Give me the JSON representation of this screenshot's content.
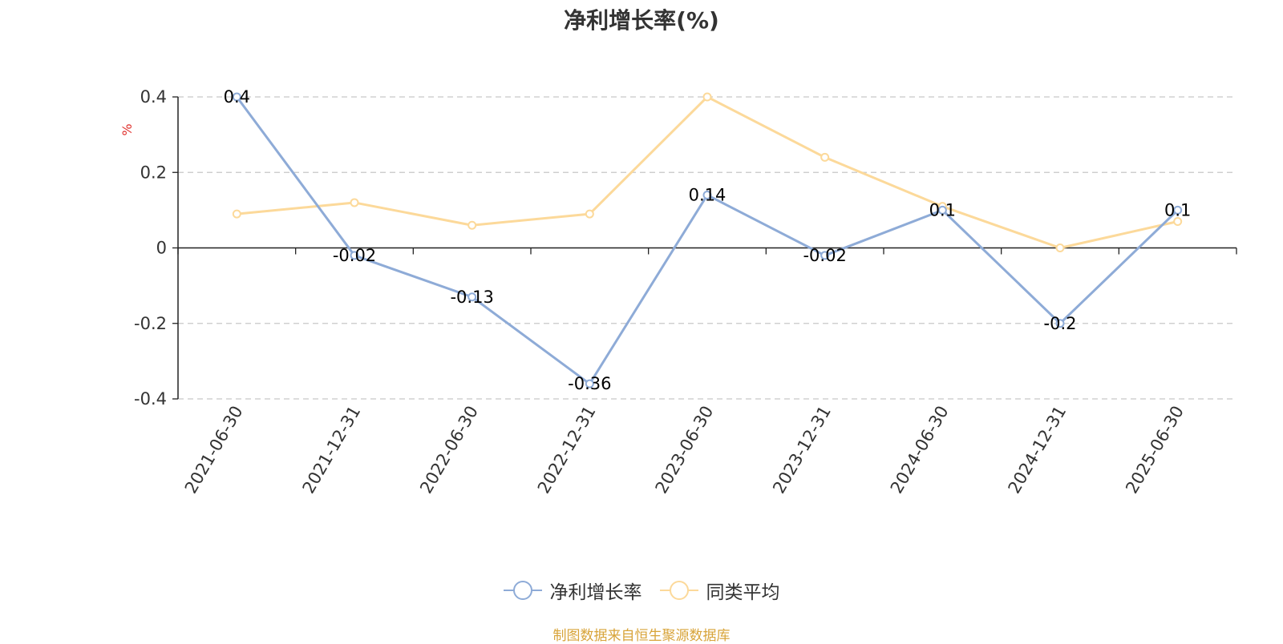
{
  "title": "净利增长率(%)",
  "footer": "制图数据来自恒生聚源数据库",
  "colors": {
    "series_a": "#8eabd7",
    "series_b": "#fcd99a",
    "unit": "#e0312d",
    "grid": "#c8c8c8",
    "axis": "#222222"
  },
  "chart_data": {
    "type": "line",
    "title": "净利增长率(%)",
    "ylabel": "%",
    "xlabel": "",
    "ylim": [
      -0.4,
      0.4
    ],
    "yticks": [
      "0.4",
      "0.2",
      "0",
      "-0.2",
      "-0.4"
    ],
    "ytick_values": [
      0.4,
      0.2,
      0,
      -0.2,
      -0.4
    ],
    "grid": true,
    "legend_position": "bottom-center",
    "categories": [
      "2021-06-30",
      "2021-12-31",
      "2022-06-30",
      "2022-12-31",
      "2023-06-30",
      "2023-12-31",
      "2024-06-30",
      "2024-12-31",
      "2025-06-30"
    ],
    "series": [
      {
        "name": "净利增长率",
        "values": [
          0.4,
          -0.02,
          -0.13,
          -0.36,
          0.14,
          -0.02,
          0.1,
          -0.2,
          0.1
        ],
        "labels": [
          "0.4",
          "-0.02",
          "-0.13",
          "-0.36",
          "0.14",
          "-0.02",
          "0.1",
          "-0.2",
          "0.1"
        ]
      },
      {
        "name": "同类平均",
        "values": [
          0.09,
          0.12,
          0.06,
          0.09,
          0.4,
          0.24,
          0.11,
          0.0,
          0.07
        ]
      }
    ]
  }
}
